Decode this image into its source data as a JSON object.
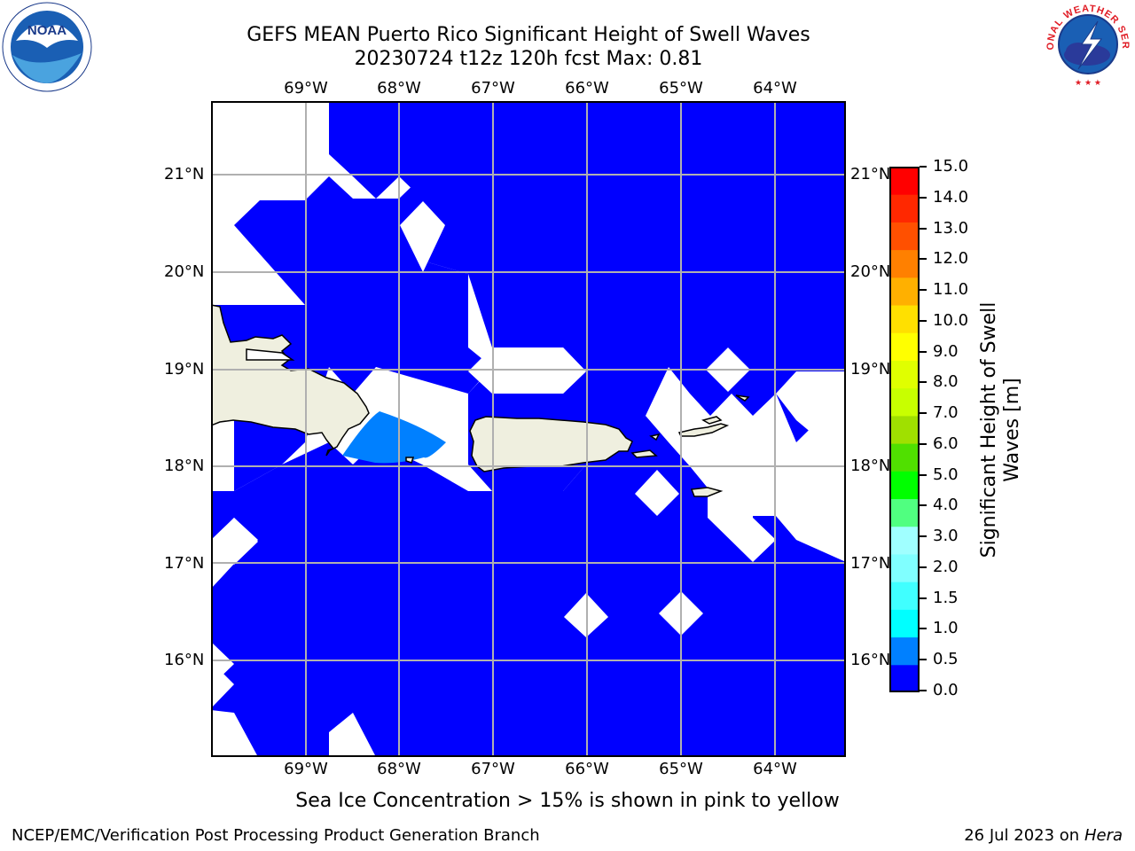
{
  "header": {
    "title_line1": "GEFS MEAN Puerto Rico Significant Height of Swell Waves",
    "title_line2": "20230724 t12z 120h fcst   Max: 0.81"
  },
  "map": {
    "lon_labels": [
      "69°W",
      "68°W",
      "67°W",
      "66°W",
      "65°W",
      "64°W"
    ],
    "lat_labels": [
      "21°N",
      "20°N",
      "19°N",
      "18°N",
      "17°N",
      "16°N"
    ],
    "colors": {
      "sea_0_0.5": "#0000ff",
      "sea_0.5_1.0": "#0080ff",
      "land": "#efefdf",
      "grid": "#b0b0b0"
    }
  },
  "colorbar": {
    "label_line1": "Significant Height of Swell",
    "label_line2": "Waves [m]",
    "ticks": [
      "15.0",
      "14.0",
      "13.0",
      "12.0",
      "11.0",
      "10.0",
      "9.0",
      "8.0",
      "7.0",
      "6.0",
      "5.0",
      "4.0",
      "3.0",
      "2.0",
      "1.5",
      "1.0",
      "0.5",
      "0.0"
    ],
    "colors_bottom_to_top": [
      "#0000ff",
      "#0080ff",
      "#00ffff",
      "#40ffff",
      "#80ffff",
      "#a0ffff",
      "#50ff80",
      "#00ff00",
      "#50e000",
      "#a0e000",
      "#c8ff00",
      "#e0ff00",
      "#ffff00",
      "#ffe000",
      "#ffb000",
      "#ff8000",
      "#ff5000",
      "#ff2800",
      "#ff0000"
    ]
  },
  "footer": {
    "note": "Sea Ice Concentration > 15% is shown in pink to yellow",
    "left": "NCEP/EMC/Verification Post Processing Product Generation Branch",
    "right_date": "26 Jul 2023 on ",
    "right_host": "Hera"
  },
  "logos": {
    "noaa_text": "NOAA",
    "nws_text": "NATIONAL WEATHER SERVICE"
  }
}
